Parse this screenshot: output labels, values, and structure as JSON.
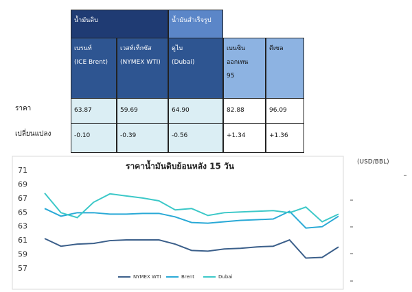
{
  "table": {
    "groups": [
      "น้ำมันดิบ",
      "น้ำมันสำเร็จรูป"
    ],
    "columns": [
      "เบรนท์\n(ICE Brent)",
      "เวสท์เท็กซัส\n(NYMEX WTI)",
      "ดูไบ\n(Dubai)",
      "เบนซิน\nออกเทน\n95",
      "ดีเซล"
    ],
    "rows": [
      [
        "ราคา",
        "63.87",
        "59.69",
        "64.90",
        "82.88",
        "96.09"
      ],
      [
        "เปลี่ยนแปลง",
        "-0.10",
        "-0.39",
        "-0.56",
        "+1.34",
        "+1.36"
      ]
    ]
  },
  "chart_data": {
    "type": "line",
    "title": "ราคาน้ำมันดิบย้อนหลัง 15 วัน",
    "unit": "(USD/BBL)",
    "ylim": [
      56,
      72
    ],
    "yticks": [
      57,
      59,
      61,
      63,
      65,
      67,
      69,
      71
    ],
    "series": [
      {
        "name": "NYMEX WTI",
        "color": "#3b5f8a",
        "values": [
          61.3,
          60.2,
          60.5,
          60.6,
          61.0,
          61.1,
          61.1,
          61.1,
          60.5,
          59.6,
          59.5,
          59.8,
          59.9,
          60.1,
          60.2,
          61.1,
          58.5,
          58.6,
          60.1
        ]
      },
      {
        "name": "Brent",
        "color": "#29a9d6",
        "values": [
          65.6,
          64.5,
          65.0,
          65.0,
          64.8,
          64.8,
          64.9,
          64.9,
          64.4,
          63.6,
          63.5,
          63.7,
          63.9,
          64.0,
          64.1,
          65.2,
          62.8,
          63.0,
          64.5
        ]
      },
      {
        "name": "Dubai",
        "color": "#3cc8c8",
        "values": [
          67.8,
          65.0,
          64.3,
          66.5,
          67.7,
          67.4,
          67.1,
          66.7,
          65.4,
          65.6,
          64.6,
          65.0,
          65.1,
          65.2,
          65.3,
          65.0,
          65.8,
          63.7,
          64.8
        ]
      }
    ]
  }
}
